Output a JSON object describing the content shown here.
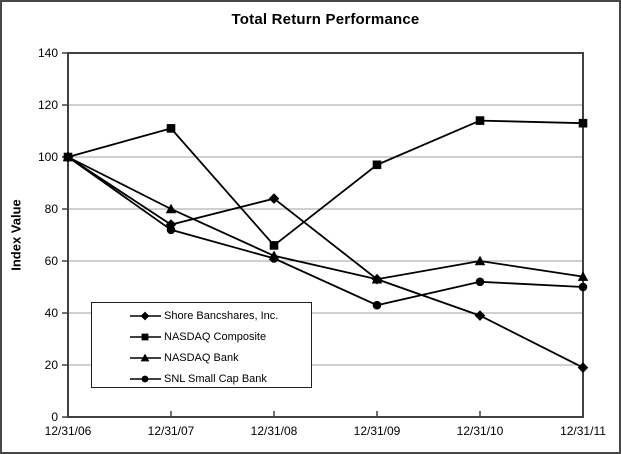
{
  "chart_data": {
    "type": "line",
    "title": "Total Return Performance",
    "xlabel": "",
    "ylabel": "Index Value",
    "categories": [
      "12/31/06",
      "12/31/07",
      "12/31/08",
      "12/31/09",
      "12/31/10",
      "12/31/11"
    ],
    "series": [
      {
        "name": "Shore Bancshares, Inc.",
        "marker": "diamond",
        "values": [
          100,
          74,
          84,
          53,
          39,
          19
        ]
      },
      {
        "name": "NASDAQ Composite",
        "marker": "square",
        "values": [
          100,
          111,
          66,
          97,
          114,
          113
        ]
      },
      {
        "name": "NASDAQ Bank",
        "marker": "triangle",
        "values": [
          100,
          80,
          62,
          53,
          60,
          54
        ]
      },
      {
        "name": "SNL Small Cap Bank",
        "marker": "circle",
        "values": [
          100,
          72,
          61,
          43,
          52,
          50
        ]
      }
    ],
    "ylim": [
      0,
      140
    ],
    "ytick_step": 20,
    "grid": true,
    "legend_position": "lower-left-inside"
  },
  "colors": {
    "series": "#000000",
    "gridline": "#a0a0a0",
    "plot_border": "#404040",
    "text": "#000000",
    "background": "#ffffff"
  }
}
